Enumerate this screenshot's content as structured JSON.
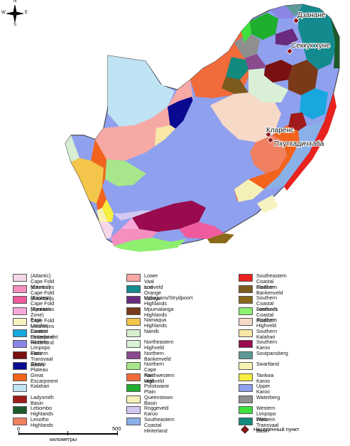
{
  "compass": {
    "n": "N",
    "s": "S",
    "e": "E",
    "w": "W"
  },
  "towns": [
    {
      "name": "Дзанане"
    },
    {
      "name": "Секкук хуне"
    },
    {
      "name": "Кларенс"
    },
    {
      "name": "Пхутхадичхаба"
    }
  ],
  "legend": {
    "columns": [
      [
        {
          "label": "(Atlantic) Cape Fold Mountains",
          "color": "#f6d7ea"
        },
        {
          "label": "(Central) Cape Fold Mountains",
          "color": "#f48fbf"
        },
        {
          "label": "(Eastern) Cape Fold Mountains",
          "color": "#ef5b9c"
        },
        {
          "label": "(Syntaxis Zone) Cape Fold Mountains",
          "color": "#f7a8d8"
        },
        {
          "label": "East London Coastal Hinterland",
          "color": "#f6f3c0"
        },
        {
          "label": "Eastern Escarpment Hinterland",
          "color": "#18a8df"
        },
        {
          "label": "Eastern Limpopo Flats",
          "color": "#8b86e6"
        },
        {
          "label": "Eastern Transvaal Basin",
          "color": "#7b1010"
        },
        {
          "label": "Ghaap Plateau",
          "color": "#0a0a90"
        },
        {
          "label": "Great Escarpment",
          "color": "#f2641c"
        },
        {
          "label": "Kalahari",
          "color": "#bfe3f3"
        },
        {
          "label": "Ladysmith Basin",
          "color": "#a01a1a"
        },
        {
          "label": "Lebombo Highlands",
          "color": "#1c5a2a"
        },
        {
          "label": "Lesotho Highlands",
          "color": "#f08060"
        }
      ],
      [
        {
          "label": "Lower Vaal and Orange Valleys",
          "color": "#f7a9a6"
        },
        {
          "label": "Lowveld",
          "color": "#138b8e"
        },
        {
          "label": "Makapans/Strydpoort Highlands",
          "color": "#6a2a7e"
        },
        {
          "label": "Mpumalanga Highlands",
          "color": "#7a3a1a"
        },
        {
          "label": "Namaqua Highlands",
          "color": "#f3c54a"
        },
        {
          "label": "Namib",
          "color": "#d7eed1"
        },
        {
          "label": "Northeastern Highveld",
          "color": "#d9f0d6"
        },
        {
          "label": "Northern Bankenveld",
          "color": "#8a4b8e"
        },
        {
          "label": "Northern Cape Pan Veld",
          "color": "#a7e68a"
        },
        {
          "label": "Northwestern Highveld",
          "color": "#f26b3a"
        },
        {
          "label": "Polokwane Plain",
          "color": "#1fae2e"
        },
        {
          "label": "Queenstown Basin",
          "color": "#f5f0b8"
        },
        {
          "label": "Roggeveld Karoo",
          "color": "#d2c8f2"
        },
        {
          "label": "Southeastern Coastal Hinterland",
          "color": "#8ab0e8"
        }
      ],
      [
        {
          "label": "Southeastern Coastal Platform",
          "color": "#e8221e"
        },
        {
          "label": "Southern Bankenveld",
          "color": "#7d5a1e"
        },
        {
          "label": "Southern Coastal Lowlands",
          "color": "#8a6a1a"
        },
        {
          "label": "Southern Coastal Platform",
          "color": "#8ef06e"
        },
        {
          "label": "Southern Highveld",
          "color": "#f7d9c8"
        },
        {
          "label": "Southern Kalahari",
          "color": "#f8e7a6"
        },
        {
          "label": "Southern Karoo",
          "color": "#9a0a4e"
        },
        {
          "label": "Soutpansberg",
          "color": "#5d9a98"
        },
        {
          "label": "Swartland",
          "color": "#f8f2b2"
        },
        {
          "label": "Tankwa Karoo",
          "color": "#f6ee3e"
        },
        {
          "label": "Upper Karoo",
          "color": "#8fa0ee"
        },
        {
          "label": "Waterberg",
          "color": "#8f8f8f"
        },
        {
          "label": "Western Limpopo Flats",
          "color": "#3ee03e"
        },
        {
          "label": "Western Transvaal Basin",
          "color": "#128a7e"
        }
      ]
    ]
  },
  "scale": {
    "start": "0",
    "end": "500",
    "unit": "километры"
  },
  "settlement_legend": "Населенный пункт"
}
